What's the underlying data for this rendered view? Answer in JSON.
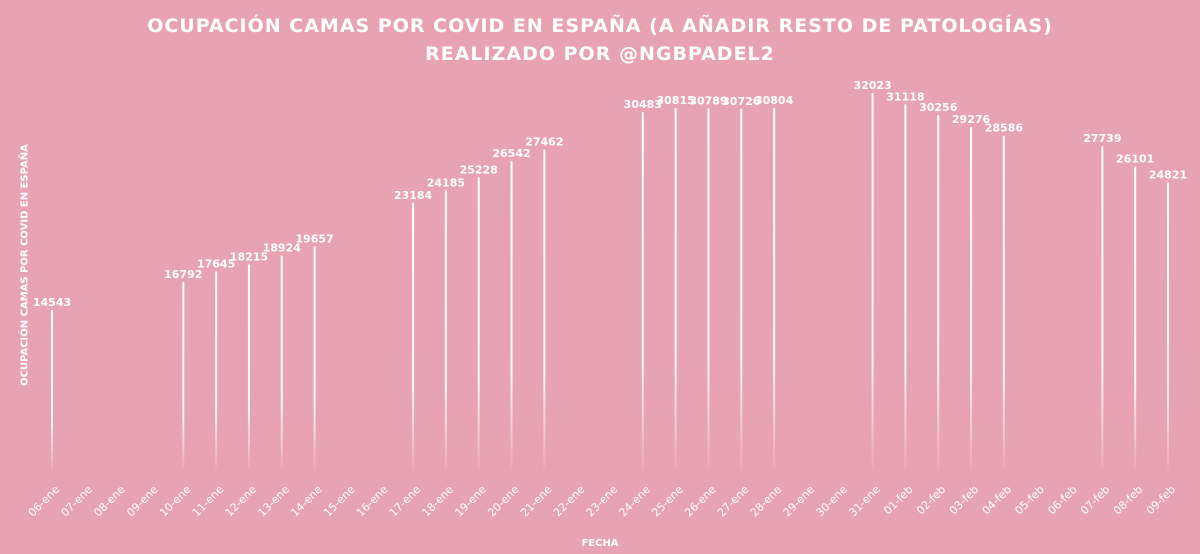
{
  "chart_data": {
    "type": "bar",
    "title": "OCUPACIÓN CAMAS POR COVID EN ESPAÑA (A AÑADIR RESTO DE PATOLOGÍAS)",
    "subtitle": "REALIZADO POR @NGBPADEL2",
    "xlabel": "FECHA",
    "ylabel": "OCUPACIÓN CAMAS POR COVID EN ESPAÑA",
    "ylim": [
      1650,
      32400
    ],
    "grid": false,
    "colors": {
      "background": "#e8a3b3",
      "bar": "#ffffff"
    },
    "categories": [
      "06-ene",
      "07-ene",
      "08-ene",
      "09-ene",
      "10-ene",
      "11-ene",
      "12-ene",
      "13-ene",
      "14-ene",
      "15-ene",
      "16-ene",
      "17-ene",
      "18-ene",
      "19-ene",
      "20-ene",
      "21-ene",
      "22-ene",
      "23-ene",
      "24-ene",
      "25-ene",
      "26-ene",
      "27-ene",
      "28-ene",
      "29-ene",
      "30-ene",
      "31-ene",
      "01-feb",
      "02-feb",
      "03-feb",
      "04-feb",
      "05-feb",
      "06-feb",
      "07-feb",
      "08-feb",
      "09-feb"
    ],
    "values": [
      14543,
      null,
      null,
      null,
      16792,
      17645,
      18215,
      18924,
      19657,
      null,
      null,
      23184,
      24185,
      25228,
      26542,
      27462,
      null,
      null,
      30483,
      30815,
      30789,
      30726,
      30804,
      null,
      null,
      32023,
      31118,
      30256,
      29276,
      28586,
      null,
      null,
      27739,
      26101,
      24821
    ]
  }
}
